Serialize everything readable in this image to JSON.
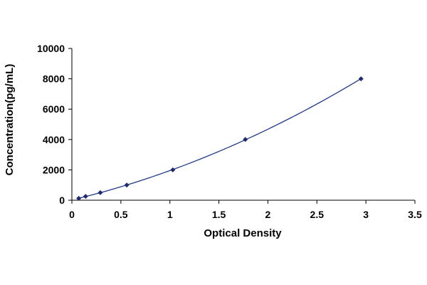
{
  "chart_data": {
    "type": "scatter",
    "title": "",
    "xlabel": "Optical Density",
    "ylabel": "Concentration(pg/mL)",
    "xlim": [
      0,
      3.5
    ],
    "ylim": [
      0,
      10000
    ],
    "x_ticks": [
      0,
      0.5,
      1,
      1.5,
      2,
      2.5,
      3,
      3.5
    ],
    "x_tick_labels": [
      "0",
      "0.5",
      "1",
      "1.5",
      "2",
      "2.5",
      "3",
      "3.5"
    ],
    "y_ticks": [
      0,
      2000,
      4000,
      6000,
      8000,
      10000
    ],
    "y_tick_labels": [
      "0",
      "2000",
      "4000",
      "6000",
      "8000",
      "10000"
    ],
    "grid": false,
    "legend": "none",
    "marker": "diamond",
    "series": [
      {
        "x": [
          0.07,
          0.14,
          0.29,
          0.56,
          1.03,
          1.77,
          2.95
        ],
        "y": [
          125,
          250,
          500,
          1000,
          2000,
          4000,
          8000
        ],
        "trendline": "polynomial"
      }
    ],
    "colors": {
      "line": "#1f3a8a",
      "marker": "#1f2a70",
      "axis": "#000000"
    }
  }
}
